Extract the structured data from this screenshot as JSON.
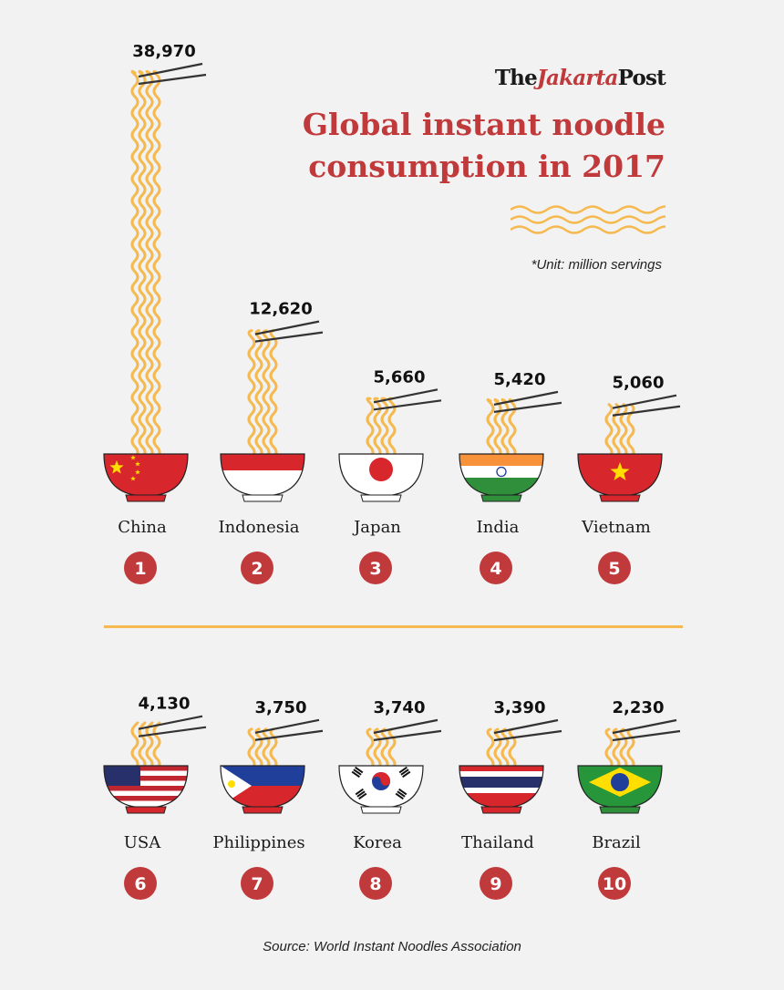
{
  "brand": {
    "part1": "The",
    "part2": "Jakarta",
    "part3": "Post"
  },
  "title_line1": "Global instant noodle",
  "title_line2": "consumption in 2017",
  "unit_note": "*Unit: million servings",
  "source": "Source: World Instant Noodles Association",
  "colors": {
    "accent": "#c0393b",
    "noodle": "#f5b94f",
    "rank_circle": "#c0393b"
  },
  "chart_data": {
    "type": "bar",
    "title": "Global instant noodle consumption in 2017",
    "unit": "*Unit: million servings",
    "categories": [
      "China",
      "Indonesia",
      "Japan",
      "India",
      "Vietnam",
      "USA",
      "Philippines",
      "Korea",
      "Thailand",
      "Brazil"
    ],
    "values": [
      38970,
      12620,
      5660,
      5420,
      5060,
      4130,
      3750,
      3740,
      3390,
      2230
    ],
    "value_labels": [
      "38,970",
      "12,620",
      "5,660",
      "5,420",
      "5,060",
      "4,130",
      "3,750",
      "3,740",
      "3,390",
      "2,230"
    ],
    "ranks": [
      "1",
      "2",
      "3",
      "4",
      "5",
      "6",
      "7",
      "8",
      "9",
      "10"
    ],
    "flag_icons": [
      "china-flag-icon",
      "indonesia-flag-icon",
      "japan-flag-icon",
      "india-flag-icon",
      "vietnam-flag-icon",
      "usa-flag-icon",
      "philippines-flag-icon",
      "korea-flag-icon",
      "thailand-flag-icon",
      "brazil-flag-icon"
    ]
  }
}
